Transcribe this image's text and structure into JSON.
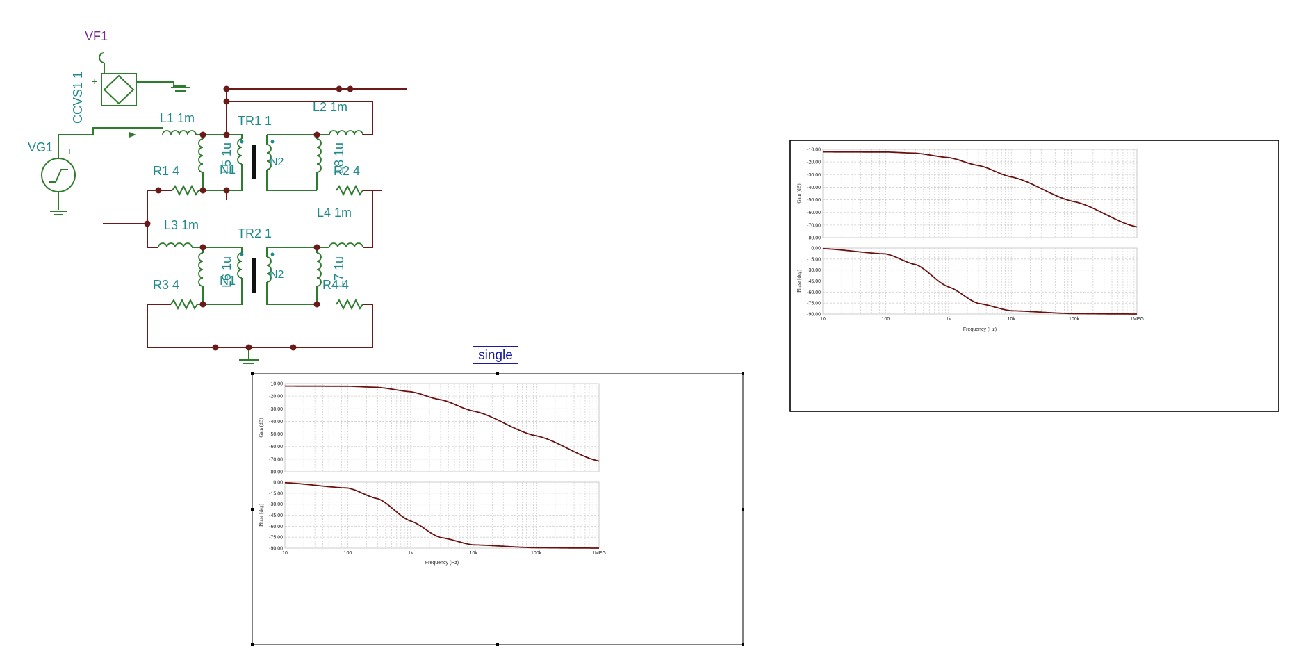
{
  "schematic": {
    "labels": {
      "vf1": "VF1",
      "ccvs1": "CCVS1 1",
      "vg1": "VG1",
      "l1": "L1 1m",
      "l2": "L2 1m",
      "tr1": "TR1 1",
      "r1": "R1 4",
      "r2": "R2 4",
      "l3": "L3 1m",
      "l4": "L4 1m",
      "tr2": "TR2 1",
      "r3": "R3 4",
      "r4": "R4 4",
      "tr1_l5": "L5 1u",
      "tr1_n1": "N1",
      "tr1_n2": "N2",
      "tr1_l8": "L8 1u",
      "tr2_l6": "L6 1u",
      "tr2_n1": "N1",
      "tr2_n2": "N2",
      "tr2_l7": "L7 1u",
      "plus": "+",
      "minus": "-"
    }
  },
  "single_label": "single",
  "chart_data": [
    {
      "type": "line",
      "title": "",
      "x_scale": "log",
      "xlabel": "Frequency (Hz)",
      "x_ticks": [
        "10",
        "100",
        "1k",
        "10k",
        "100k",
        "1MEG"
      ],
      "panels": [
        {
          "ylabel": "Gain (dB)",
          "ylim": [
            -80,
            -10
          ],
          "y_ticks": [
            "-10.00",
            "-20.00",
            "-30.00",
            "-40.00",
            "-50.00",
            "-60.00",
            "-70.00",
            "-80.00"
          ],
          "series": [
            {
              "x": [
                10,
                100,
                300,
                1000,
                3000,
                10000,
                100000,
                1000000
              ],
              "y": [
                -12,
                -12.1,
                -13,
                -16.5,
                -22.8,
                -31.8,
                -51.5,
                -71.5
              ]
            }
          ]
        },
        {
          "ylabel": "Phase [deg]",
          "ylim": [
            -90,
            0
          ],
          "y_ticks": [
            "0.00",
            "-15.00",
            "-30.00",
            "-45.00",
            "-60.00",
            "-75.00",
            "-90.00"
          ],
          "series": [
            {
              "x": [
                10,
                100,
                300,
                1000,
                3000,
                10000,
                100000,
                1000000
              ],
              "y": [
                -0.8,
                -8,
                -22.5,
                -53,
                -75.5,
                -85.5,
                -89.5,
                -90
              ]
            }
          ]
        }
      ]
    },
    {
      "type": "line",
      "title": "single",
      "x_scale": "log",
      "xlabel": "Frequency (Hz)",
      "x_ticks": [
        "10",
        "100",
        "1k",
        "10k",
        "100k",
        "1MEG"
      ],
      "panels": [
        {
          "ylabel": "Gain (dB)",
          "ylim": [
            -80,
            -10
          ],
          "y_ticks": [
            "-10.00",
            "-20.00",
            "-30.00",
            "-40.00",
            "-50.00",
            "-60.00",
            "-70.00",
            "-80.00"
          ],
          "series": [
            {
              "x": [
                10,
                100,
                300,
                1000,
                3000,
                10000,
                100000,
                1000000
              ],
              "y": [
                -12,
                -12.1,
                -13,
                -16.5,
                -22.8,
                -31.8,
                -51.5,
                -71.5
              ]
            }
          ]
        },
        {
          "ylabel": "Phase [deg]",
          "ylim": [
            -90,
            0
          ],
          "y_ticks": [
            "0.00",
            "-15.00",
            "-30.00",
            "-45.00",
            "-60.00",
            "-75.00",
            "-90.00"
          ],
          "series": [
            {
              "x": [
                10,
                100,
                300,
                1000,
                3000,
                10000,
                100000,
                1000000
              ],
              "y": [
                -0.8,
                -8,
                -22.5,
                -53,
                -75.5,
                -85.5,
                -89.5,
                -90
              ]
            }
          ]
        }
      ]
    }
  ]
}
